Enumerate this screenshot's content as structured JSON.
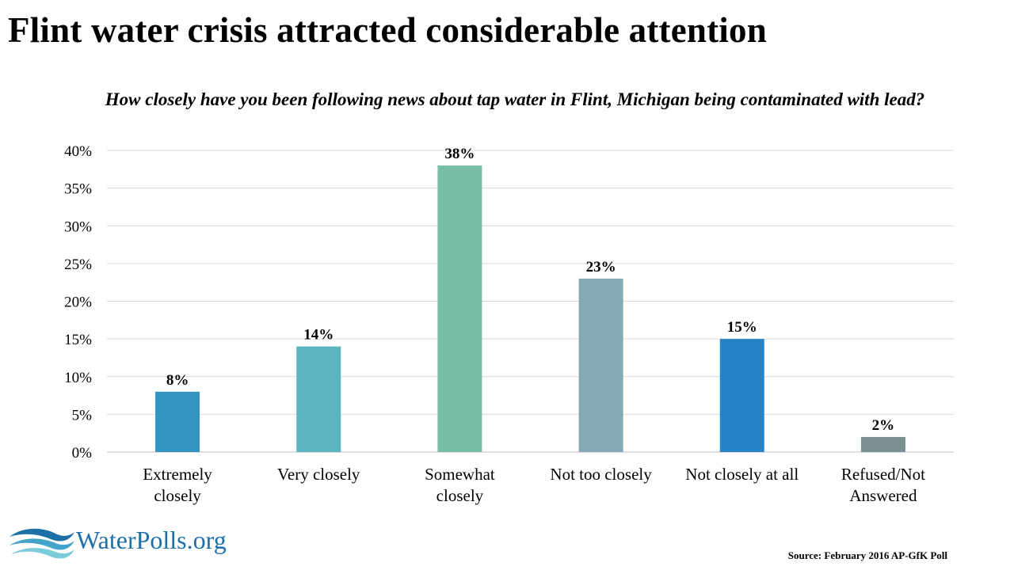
{
  "title": "Flint water crisis attracted considerable attention",
  "subtitle": "How closely have you been following news about tap water in Flint, Michigan being contaminated with lead?",
  "chart_data": {
    "type": "bar",
    "title": "Flint water crisis attracted considerable attention",
    "subtitle": "How closely have you been following news about tap water in Flint, Michigan being contaminated with lead?",
    "categories": [
      [
        "Extremely",
        "closely"
      ],
      [
        "Very closely"
      ],
      [
        "Somewhat",
        "closely"
      ],
      [
        "Not too closely"
      ],
      [
        "Not closely at all"
      ],
      [
        "Refused/Not",
        "Answered"
      ]
    ],
    "values": [
      8,
      14,
      38,
      23,
      15,
      2
    ],
    "data_labels": [
      "8%",
      "14%",
      "38%",
      "23%",
      "15%",
      "2%"
    ],
    "bar_colors": [
      "#3193bf",
      "#5ab5c0",
      "#76bea8",
      "#85a9b3",
      "#2683c6",
      "#7c8f91"
    ],
    "ylim": [
      0,
      40
    ],
    "yticks": [
      0,
      5,
      10,
      15,
      20,
      25,
      30,
      35,
      40
    ],
    "ytick_labels": [
      "0%",
      "5%",
      "10%",
      "15%",
      "20%",
      "25%",
      "30%",
      "35%",
      "40%"
    ],
    "xlabel": "",
    "ylabel": "",
    "grid": true,
    "legend": "none"
  },
  "logo": {
    "text": "WaterPolls.org",
    "icon": "water-waves-icon"
  },
  "source": "Source: February 2016 AP-GfK Poll"
}
